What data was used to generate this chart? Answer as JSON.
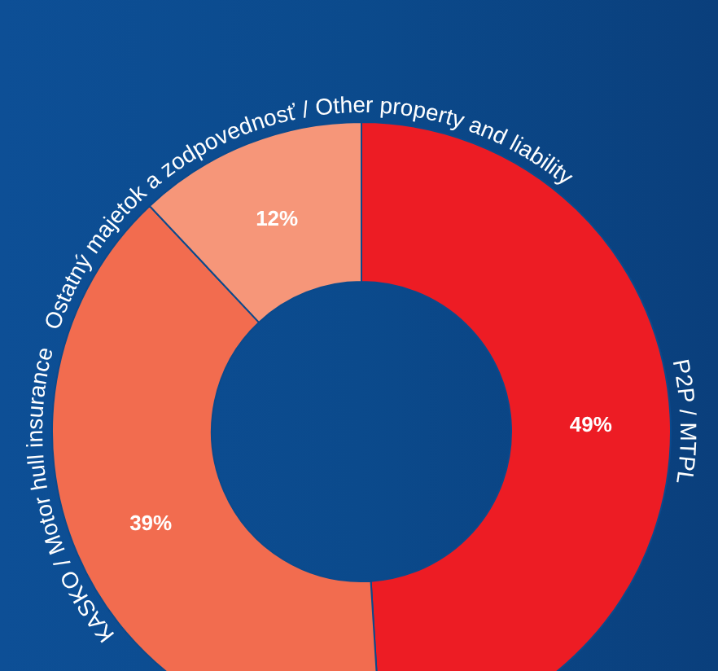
{
  "chart_data": {
    "type": "donut",
    "categories": [
      "P2P / MTPL",
      "KASKO / Motor hull insurance",
      "Ostatný majetok a zodpovednosť / Other property and liability"
    ],
    "values": [
      49,
      39,
      12
    ],
    "colors": [
      "#ed1c24",
      "#f26c4f",
      "#f69679"
    ],
    "value_labels": [
      "49%",
      "39%",
      "12%"
    ]
  }
}
